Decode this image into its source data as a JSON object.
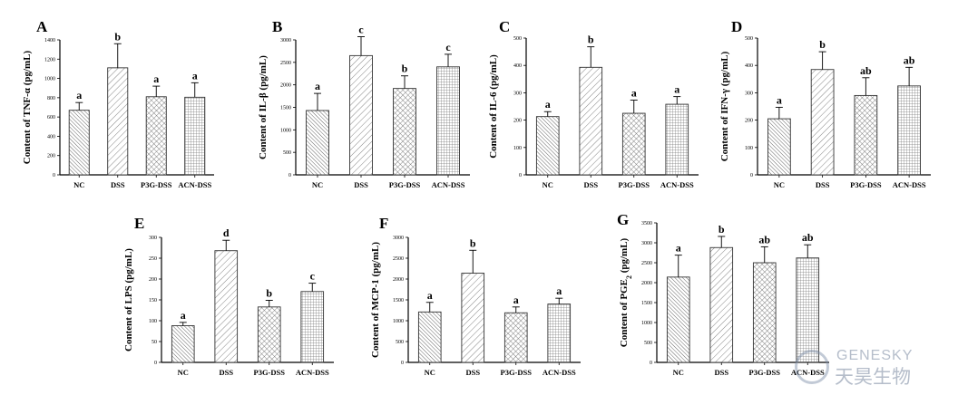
{
  "patterns": {
    "NC": "dense-diagonal-left",
    "DSS": "wide-diagonal-right",
    "P3G-DSS": "diagonal-crosshatch",
    "ACN-DSS": "fine-grid"
  },
  "colors": {
    "bar_fill": "#ffffff",
    "bar_stroke": "#333333",
    "hatch": "#555555",
    "axis": "#000000"
  },
  "watermark": {
    "text_en": "GENESKY",
    "text_cn": "天昊生物"
  },
  "chart_data": [
    {
      "panel": "A",
      "type": "bar",
      "categories": [
        "NC",
        "DSS",
        "P3G-DSS",
        "ACN-DSS"
      ],
      "values": [
        670,
        1110,
        810,
        805
      ],
      "errors": [
        80,
        250,
        110,
        150
      ],
      "letters": [
        "a",
        "b",
        "a",
        "a"
      ],
      "ylabel": "Content of TNF-α (pg/mL)",
      "ylim": [
        0,
        1400
      ],
      "yticks": [
        0,
        200,
        400,
        600,
        800,
        1000,
        1200,
        1400
      ]
    },
    {
      "panel": "B",
      "type": "bar",
      "categories": [
        "NC",
        "DSS",
        "P3G-DSS",
        "ACN-DSS"
      ],
      "values": [
        1430,
        2650,
        1920,
        2400
      ],
      "errors": [
        380,
        420,
        280,
        280
      ],
      "letters": [
        "a",
        "c",
        "b",
        "c"
      ],
      "ylabel": "Content of IL-β (pg/mL)",
      "ylim": [
        0,
        3000
      ],
      "yticks": [
        0,
        500,
        1000,
        1500,
        2000,
        2500,
        3000
      ]
    },
    {
      "panel": "C",
      "type": "bar",
      "categories": [
        "NC",
        "DSS",
        "P3G-DSS",
        "ACN-DSS"
      ],
      "values": [
        213,
        393,
        225,
        258
      ],
      "errors": [
        18,
        75,
        48,
        28
      ],
      "letters": [
        "a",
        "b",
        "a",
        "a"
      ],
      "ylabel": "Content of IL-6 (pg/mL)",
      "ylim": [
        0,
        500
      ],
      "yticks": [
        0,
        100,
        200,
        300,
        400,
        500
      ]
    },
    {
      "panel": "D",
      "type": "bar",
      "categories": [
        "NC",
        "DSS",
        "P3G-DSS",
        "ACN-DSS"
      ],
      "values": [
        205,
        385,
        290,
        325
      ],
      "errors": [
        42,
        65,
        65,
        68
      ],
      "letters": [
        "a",
        "b",
        "ab",
        "ab"
      ],
      "ylabel": "Content of IFN-γ (pg/mL)",
      "ylim": [
        0,
        500
      ],
      "yticks": [
        0,
        100,
        200,
        300,
        400,
        500
      ]
    },
    {
      "panel": "E",
      "type": "bar",
      "categories": [
        "NC",
        "DSS",
        "P3G-DSS",
        "ACN-DSS"
      ],
      "values": [
        88,
        268,
        133,
        170
      ],
      "errors": [
        8,
        25,
        16,
        20
      ],
      "letters": [
        "a",
        "d",
        "b",
        "c"
      ],
      "ylabel": "Content of LPS (pg/mL)",
      "ylim": [
        0,
        300
      ],
      "yticks": [
        0,
        50,
        100,
        150,
        200,
        250,
        300
      ]
    },
    {
      "panel": "F",
      "type": "bar",
      "categories": [
        "NC",
        "DSS",
        "P3G-DSS",
        "ACN-DSS"
      ],
      "values": [
        1210,
        2140,
        1190,
        1400
      ],
      "errors": [
        230,
        550,
        140,
        140
      ],
      "letters": [
        "a",
        "b",
        "a",
        "a"
      ],
      "ylabel": "Content of MCP-1 (pg/mL)",
      "ylim": [
        0,
        3000
      ],
      "yticks": [
        0,
        500,
        1000,
        1500,
        2000,
        2500,
        3000
      ]
    },
    {
      "panel": "G",
      "type": "bar",
      "categories": [
        "NC",
        "DSS",
        "P3G-DSS",
        "ACN-DSS"
      ],
      "values": [
        2140,
        2880,
        2500,
        2620
      ],
      "errors": [
        550,
        280,
        400,
        330
      ],
      "letters": [
        "a",
        "b",
        "ab",
        "ab"
      ],
      "ylabel": "Content of PGE",
      "ylabel_sub": "2",
      "ylabel_suffix": " (pg/mL)",
      "ylim": [
        0,
        3500
      ],
      "yticks": [
        0,
        500,
        1000,
        1500,
        2000,
        2500,
        3000,
        3500
      ]
    }
  ]
}
